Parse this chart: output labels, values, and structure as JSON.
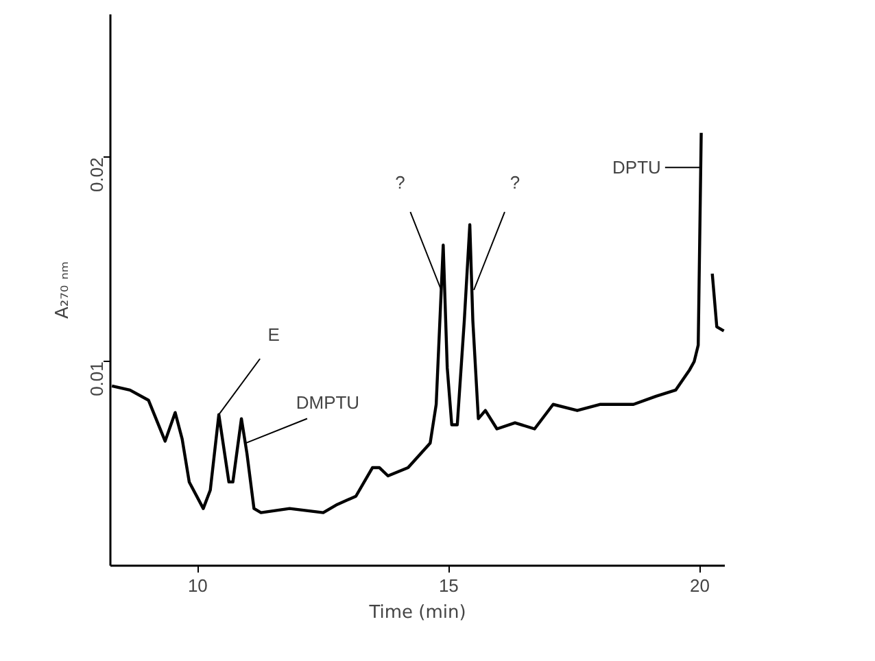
{
  "chart_data": {
    "type": "line",
    "xlabel": "Time (min)",
    "ylabel": "A₂₇₀ ₙₘ",
    "x": [
      8.29,
      8.65,
      9.02,
      9.35,
      9.55,
      9.69,
      9.83,
      10.11,
      10.25,
      10.42,
      10.62,
      10.7,
      10.87,
      10.98,
      11.12,
      11.26,
      11.83,
      12.5,
      12.78,
      13.15,
      13.48,
      13.62,
      13.79,
      14.19,
      14.63,
      14.75,
      14.89,
      14.97,
      15.06,
      15.17,
      15.31,
      15.42,
      15.48,
      15.59,
      15.73,
      15.96,
      16.32,
      16.71,
      17.08,
      17.56,
      18.01,
      18.68,
      19.13,
      19.52,
      19.8,
      19.89,
      19.97,
      20.03,
      20.08,
      20.2,
      20.25,
      20.34,
      20.48
    ],
    "series": [
      {
        "color": "#000000",
        "values": [
          0.0088,
          0.0086,
          0.0081,
          0.0061,
          0.0075,
          0.0062,
          0.0041,
          0.0028,
          0.0037,
          0.0074,
          0.0041,
          0.0041,
          0.0072,
          0.0055,
          0.0028,
          0.0026,
          0.0028,
          0.0026,
          0.003,
          0.0034,
          0.0048,
          0.0048,
          0.0044,
          0.0048,
          0.006,
          0.0079,
          0.0157,
          0.0097,
          0.0069,
          0.0069,
          0.012,
          0.0167,
          0.012,
          0.0072,
          0.0076,
          0.0067,
          0.007,
          0.0067,
          0.0079,
          0.0076,
          0.0079,
          0.0079,
          0.0083,
          0.0086,
          0.0096,
          0.01,
          0.0108,
          0.0212,
          null,
          null,
          0.0143,
          0.0117,
          0.0115
        ]
      }
    ],
    "xlim": [
      8.26,
      20.5
    ],
    "ylim": [
      0,
      0.027
    ],
    "xticks": [
      10,
      15,
      20
    ],
    "yticks": [
      0.01,
      0.02
    ],
    "grid": false,
    "marker": "none",
    "line_style": "solid",
    "annotations": [
      {
        "text": "E",
        "x": 10.42,
        "y": 0.0074
      },
      {
        "text": "DMPTU",
        "x": 10.95,
        "y": 0.006
      },
      {
        "text": "?",
        "x": 14.85,
        "y": 0.0135
      },
      {
        "text": "?",
        "x": 15.5,
        "y": 0.0135
      },
      {
        "text": "DPTU",
        "x": 20.02,
        "y": 0.0195
      }
    ]
  }
}
